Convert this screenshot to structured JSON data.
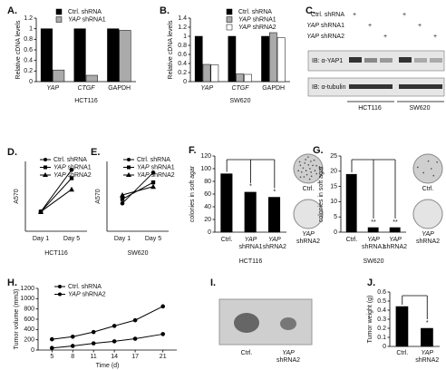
{
  "chart_data": [
    {
      "panel": "A.",
      "type": "bar",
      "ylabel": "Relative cDNA levels",
      "xlabel": "HCT116",
      "categories": [
        "YAP",
        "CTGF",
        "GAPDH"
      ],
      "series": [
        {
          "name": "Ctrl. shRNA",
          "color": "#000000",
          "values": [
            1,
            1,
            1
          ]
        },
        {
          "name": "YAP shRNA1",
          "color": "#aaaaaa",
          "values": [
            0.22,
            0.12,
            0.97
          ]
        }
      ],
      "ylim": [
        0,
        1.2
      ],
      "yticks": [
        0,
        0.2,
        0.4,
        0.6,
        0.8,
        1,
        1.2
      ]
    },
    {
      "panel": "B.",
      "type": "bar",
      "ylabel": "Relative cDNA levels",
      "xlabel": "SW620",
      "categories": [
        "YAP",
        "CTGF",
        "GAPDH"
      ],
      "series": [
        {
          "name": "Ctrl. shRNA",
          "color": "#000000",
          "values": [
            1,
            1,
            1
          ]
        },
        {
          "name": "YAP shRNA1",
          "color": "#aaaaaa",
          "values": [
            0.38,
            0.17,
            1.08
          ]
        },
        {
          "name": "YAP shRNA2",
          "color": "#ffffff",
          "values": [
            0.37,
            0.16,
            0.97
          ]
        }
      ],
      "ylim": [
        0,
        1.4
      ],
      "yticks": [
        0,
        0.2,
        0.4,
        0.6,
        0.8,
        1,
        1.2,
        1.4
      ]
    },
    {
      "panel": "D.",
      "type": "line",
      "ylabel": "A570",
      "xlabel": "HCT116",
      "categories": [
        "Day 1",
        "Day 5"
      ],
      "series": [
        {
          "name": "Ctrl. shRNA",
          "color": "#000000",
          "marker": "circle",
          "values": [
            0.14,
            0.44
          ]
        },
        {
          "name": "YAP shRNA1",
          "color": "#000000",
          "marker": "square",
          "values": [
            0.14,
            0.38
          ]
        },
        {
          "name": "YAP shRNA2",
          "color": "#000000",
          "marker": "triangle",
          "values": [
            0.14,
            0.3
          ]
        }
      ],
      "ylim": [
        0,
        0.5
      ]
    },
    {
      "panel": "E.",
      "type": "line",
      "ylabel": "A570",
      "xlabel": "SW620",
      "categories": [
        "Day 1",
        "Day 5"
      ],
      "series": [
        {
          "name": "Ctrl. shRNA",
          "color": "#000000",
          "marker": "circle",
          "values": [
            0.3,
            0.52
          ]
        },
        {
          "name": "YAP shRNA1",
          "color": "#000000",
          "marker": "square",
          "values": [
            0.33,
            0.45
          ]
        },
        {
          "name": "YAP shRNA2",
          "color": "#000000",
          "marker": "triangle",
          "values": [
            0.36,
            0.42
          ]
        }
      ],
      "ylim": [
        0.1,
        0.6
      ]
    },
    {
      "panel": "F.",
      "type": "bar",
      "ylabel": "colonies in soft agar",
      "xlabel": "HCT116",
      "categories": [
        "Ctrl.",
        "YAP shRNA1",
        "YAP shRNA2"
      ],
      "values": [
        92,
        63,
        55
      ],
      "color": "#000000",
      "ylim": [
        0,
        120
      ],
      "yticks": [
        0,
        20,
        40,
        60,
        80,
        100,
        120
      ],
      "annotations": [
        "*",
        "*"
      ],
      "photo_labels": [
        "Ctrl.",
        "YAP shRNA2"
      ]
    },
    {
      "panel": "G.",
      "type": "bar",
      "ylabel": "colonies in soft agar",
      "xlabel": "SW620",
      "categories": [
        "Ctrl.",
        "YAP shRNA1",
        "YAP shRNA2"
      ],
      "values": [
        19,
        1.5,
        1.5
      ],
      "color": "#000000",
      "ylim": [
        0,
        25
      ],
      "yticks": [
        0,
        5,
        10,
        15,
        20,
        25
      ],
      "annotations": [
        "**",
        "**"
      ],
      "photo_labels": [
        "Ctrl.",
        "YAP shRNA2"
      ]
    },
    {
      "panel": "H.",
      "type": "line",
      "ylabel": "Tumor volume (mm3)",
      "xlabel": "Time (d)",
      "x": [
        5,
        8,
        11,
        14,
        17,
        21
      ],
      "xlim": [
        3,
        23
      ],
      "xticks": [
        5,
        8,
        11,
        14,
        17,
        21
      ],
      "series": [
        {
          "name": "Ctrl. shRNA",
          "color": "#000000",
          "marker": "circle",
          "values": [
            210,
            260,
            350,
            470,
            580,
            850
          ]
        },
        {
          "name": "YAP shRNA2",
          "color": "#000000",
          "marker": "circle",
          "values": [
            40,
            80,
            130,
            170,
            220,
            310
          ]
        }
      ],
      "ylim": [
        0,
        1200
      ],
      "yticks": [
        0,
        200,
        400,
        600,
        800,
        1000,
        1200
      ]
    },
    {
      "panel": "J.",
      "type": "bar",
      "ylabel": "Tumor weight (g)",
      "categories": [
        "Ctrl.",
        "YAP shRNA2"
      ],
      "values": [
        0.44,
        0.2
      ],
      "color": "#000000",
      "ylim": [
        0,
        0.6
      ],
      "yticks": [
        0,
        0.1,
        0.2,
        0.3,
        0.4,
        0.5,
        0.6
      ],
      "annotations": [
        "*"
      ]
    }
  ],
  "blot": {
    "panel": "C.",
    "rows": [
      {
        "label": "Ctrl. shRNA",
        "signs": [
          "+",
          "+"
        ]
      },
      {
        "label": "YAP shRNA1",
        "signs": [
          "+",
          "+"
        ]
      },
      {
        "label": "YAP shRNA2",
        "signs": [
          "+",
          "+"
        ]
      }
    ],
    "probes": [
      "IB: α-YAP1",
      "IB: α-tubulin"
    ],
    "cells": [
      "HCT116",
      "SW620"
    ]
  },
  "photo": {
    "panel": "I.",
    "labels": [
      "Ctrl.",
      "YAP shRNA2"
    ]
  }
}
